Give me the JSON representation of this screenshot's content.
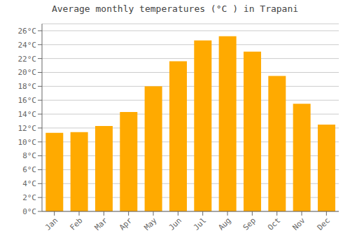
{
  "chart_data": {
    "type": "bar",
    "title": "Average monthly temperatures (°C ) in Trapani",
    "categories": [
      "Jan",
      "Feb",
      "Mar",
      "Apr",
      "May",
      "Jun",
      "Jul",
      "Aug",
      "Sep",
      "Oct",
      "Nov",
      "Dec"
    ],
    "values": [
      11.3,
      11.4,
      12.3,
      14.3,
      18.0,
      21.6,
      24.6,
      25.2,
      23.0,
      19.5,
      15.5,
      12.5
    ],
    "color": "#FFAA00",
    "ylim": [
      0,
      27
    ],
    "yticks": [
      {
        "value": 0,
        "label": "0°C"
      },
      {
        "value": 2,
        "label": "2°C"
      },
      {
        "value": 4,
        "label": "4°C"
      },
      {
        "value": 6,
        "label": "6°C"
      },
      {
        "value": 8,
        "label": "8°C"
      },
      {
        "value": 10,
        "label": "10°C"
      },
      {
        "value": 12,
        "label": "12°C"
      },
      {
        "value": 14,
        "label": "14°C"
      },
      {
        "value": 16,
        "label": "16°C"
      },
      {
        "value": 18,
        "label": "18°C"
      },
      {
        "value": 20,
        "label": "20°C"
      },
      {
        "value": 22,
        "label": "22°C"
      },
      {
        "value": 24,
        "label": "24°C"
      },
      {
        "value": 26,
        "label": "26°C"
      }
    ],
    "grid": true
  }
}
